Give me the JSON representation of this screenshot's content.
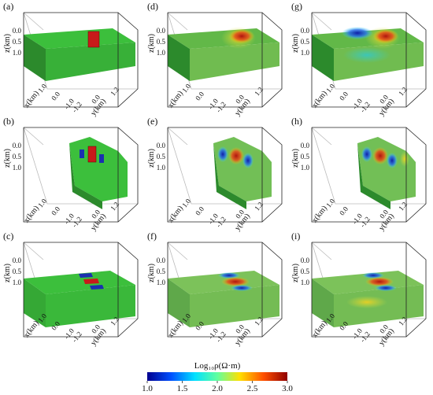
{
  "axis_labels": {
    "x": "x(km)",
    "y": "y(km)",
    "z": "z(km)"
  },
  "z_ticks": [
    "0.0",
    "0.5",
    "1.0"
  ],
  "x_ticks": [
    "1.0",
    "0.0",
    "-1.0"
  ],
  "y_ticks": [
    "-1.2",
    "0.0",
    "1.2"
  ],
  "panels": [
    {
      "letter": "(a)",
      "row": 0,
      "col": 0,
      "view": "yz-slice",
      "style": "true-model"
    },
    {
      "letter": "(d)",
      "row": 0,
      "col": 1,
      "view": "yz-slice",
      "style": "inversion-smooth"
    },
    {
      "letter": "(g)",
      "row": 0,
      "col": 2,
      "view": "yz-slice",
      "style": "inversion-rough"
    },
    {
      "letter": "(b)",
      "row": 1,
      "col": 0,
      "view": "xz-slice",
      "style": "true-model"
    },
    {
      "letter": "(e)",
      "row": 1,
      "col": 1,
      "view": "xz-slice",
      "style": "inversion-smooth"
    },
    {
      "letter": "(h)",
      "row": 1,
      "col": 2,
      "view": "xz-slice",
      "style": "inversion-rough"
    },
    {
      "letter": "(c)",
      "row": 2,
      "col": 0,
      "view": "xy-slice",
      "style": "true-model"
    },
    {
      "letter": "(f)",
      "row": 2,
      "col": 1,
      "view": "xy-slice",
      "style": "inversion-smooth"
    },
    {
      "letter": "(i)",
      "row": 2,
      "col": 2,
      "view": "xy-slice",
      "style": "inversion-rough"
    }
  ],
  "colorbar": {
    "title": "Log₁₀ρ(Ω·m)",
    "ticks": [
      "1.0",
      "1.5",
      "2.0",
      "2.5",
      "3.0"
    ],
    "min": 1.0,
    "max": 3.0,
    "colors": [
      "#00008f",
      "#0050ff",
      "#00e0ff",
      "#60ff9f",
      "#ffe000",
      "#ff5000",
      "#8f0000"
    ]
  },
  "colors": {
    "background_green": "#3cbf3c",
    "conductor_blue": "#1a2fb0",
    "resistor_red": "#c81a1a"
  }
}
